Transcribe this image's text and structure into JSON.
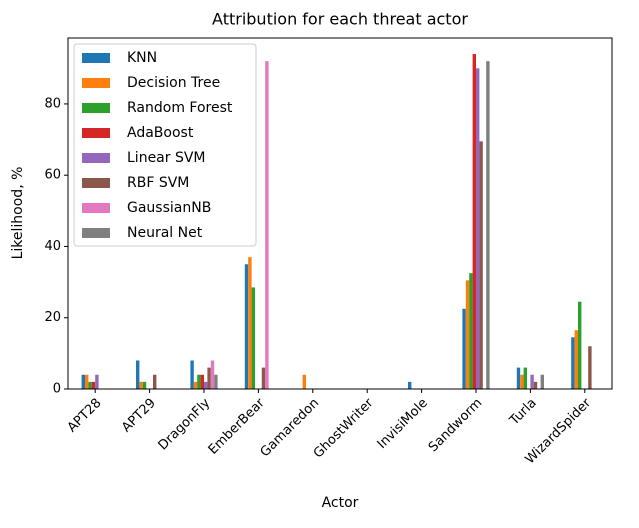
{
  "chart_data": {
    "type": "bar",
    "title": "Attribution for each threat actor",
    "xlabel": "Actor",
    "ylabel": "Likelihood, %",
    "categories": [
      "APT28",
      "APT29",
      "DragonFly",
      "EmberBear",
      "Gamaredon",
      "GhostWriter",
      "InvisiMole",
      "Sandworm",
      "Turla",
      "WizardSpider"
    ],
    "series": [
      {
        "name": "KNN",
        "color": "#1f77b4",
        "values": [
          4,
          8,
          8,
          35,
          0,
          0,
          2,
          22.5,
          6,
          14.5
        ]
      },
      {
        "name": "Decision Tree",
        "color": "#ff7f0e",
        "values": [
          4,
          2,
          2,
          37,
          4,
          0,
          0,
          30.5,
          4,
          16.5
        ]
      },
      {
        "name": "Random Forest",
        "color": "#2ca02c",
        "values": [
          2,
          2,
          4,
          28.5,
          0,
          0,
          0,
          32.5,
          6,
          24.5
        ]
      },
      {
        "name": "AdaBoost",
        "color": "#d62728",
        "values": [
          2,
          0,
          4,
          0,
          0,
          0,
          0,
          94,
          0,
          0
        ]
      },
      {
        "name": "Linear SVM",
        "color": "#9467bd",
        "values": [
          4,
          0,
          2,
          0,
          0,
          0,
          0,
          90,
          4,
          0
        ]
      },
      {
        "name": "RBF SVM",
        "color": "#8c564b",
        "values": [
          0,
          4,
          6,
          6,
          0,
          0,
          0,
          69.5,
          2,
          12
        ]
      },
      {
        "name": "GaussianNB",
        "color": "#e377c2",
        "values": [
          0,
          0,
          8,
          92,
          0,
          0,
          0,
          0,
          0,
          0
        ]
      },
      {
        "name": "Neural Net",
        "color": "#7f7f7f",
        "values": [
          0,
          0,
          4,
          0,
          0,
          0,
          0,
          92,
          4,
          0
        ]
      }
    ],
    "ylim": [
      0,
      98.5
    ],
    "yticks": [
      0,
      20,
      40,
      60,
      80
    ],
    "legend": "upper left"
  }
}
